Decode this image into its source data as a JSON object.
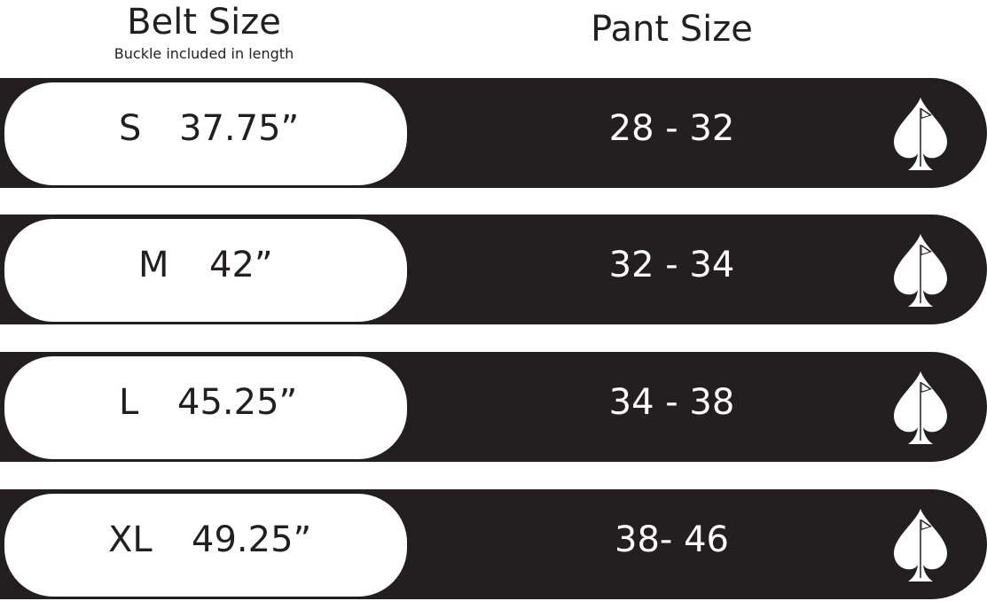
{
  "header": {
    "belt_title": "Belt Size",
    "belt_subtitle": "Buckle included in length",
    "pant_title": "Pant Size"
  },
  "rows": [
    {
      "size": "S",
      "length": "37.75”",
      "pant": "28 - 32"
    },
    {
      "size": "M",
      "length": "42”",
      "pant": "32 - 34"
    },
    {
      "size": "L",
      "length": "45.25”",
      "pant": "34 - 38"
    },
    {
      "size": "XL",
      "length": "49.25”",
      "pant": "38- 46"
    }
  ],
  "icon": "spade-golf-flag-icon",
  "colors": {
    "dark": "#231f20",
    "light": "#ffffff"
  }
}
